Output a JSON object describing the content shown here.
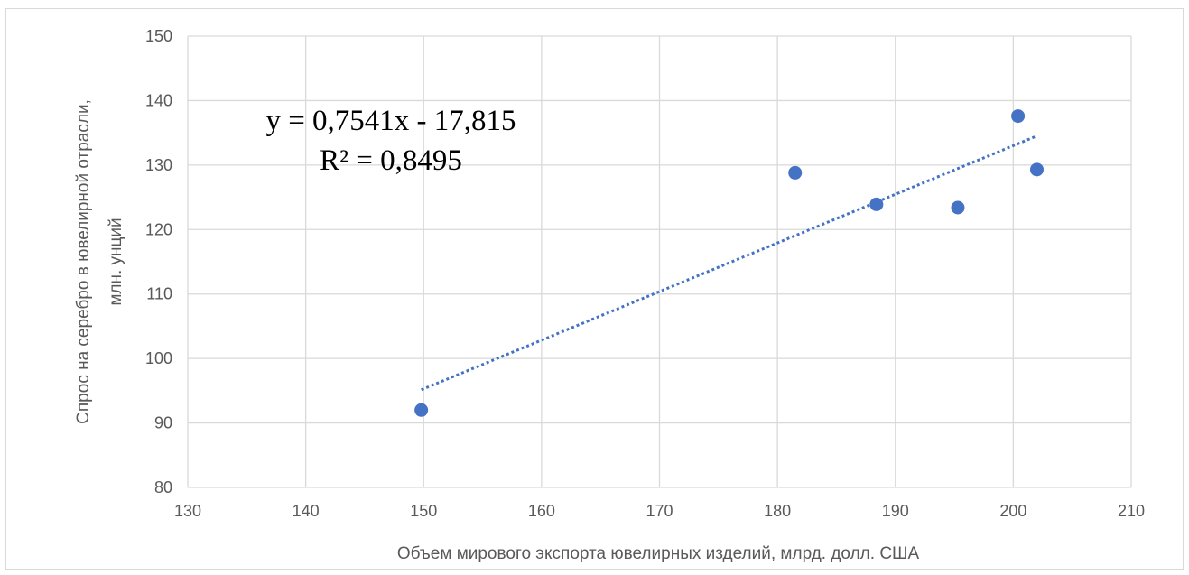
{
  "chart_data": {
    "type": "scatter",
    "title": "",
    "xlabel": "Объем мирового экспорта ювелирных изделий, млрд. долл. США",
    "ylabel_line1": "Спрос на серебро в ювелирной отрасли,",
    "ylabel_line2": "млн. унций",
    "xlim": [
      130,
      210
    ],
    "ylim": [
      80,
      150
    ],
    "x_ticks": [
      "130",
      "140",
      "150",
      "160",
      "170",
      "180",
      "190",
      "200",
      "210"
    ],
    "y_ticks": [
      "80",
      "90",
      "100",
      "110",
      "120",
      "130",
      "140",
      "150"
    ],
    "grid": true,
    "series": [
      {
        "points": [
          {
            "x": 149.8,
            "y": 92.0
          },
          {
            "x": 181.5,
            "y": 128.8
          },
          {
            "x": 188.4,
            "y": 123.9
          },
          {
            "x": 195.3,
            "y": 123.4
          },
          {
            "x": 200.4,
            "y": 137.6
          },
          {
            "x": 202.0,
            "y": 129.3
          }
        ],
        "color": "#4472c4"
      }
    ],
    "trendline": {
      "type": "linear",
      "slope": 0.7541,
      "intercept": -17.815,
      "x_range": [
        149.8,
        202.0
      ],
      "color": "#4472c4",
      "style": "dotted",
      "equation_label": "y = 0,7541x - 17,815",
      "r2_label": "R² = 0,8495"
    },
    "colors": {
      "grid": "#d9d9d9",
      "tick_text": "#595959"
    }
  }
}
